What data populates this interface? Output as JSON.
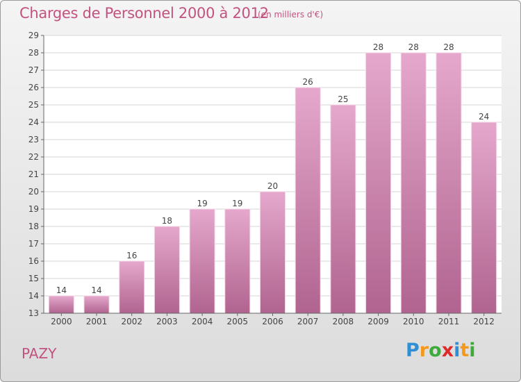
{
  "title": "Charges de Personnel 2000 à 2012",
  "subtitle": "(en milliers d'€)",
  "commune": "PAZY",
  "logo": {
    "letters": [
      {
        "ch": "P",
        "color": "#2e8fd6"
      },
      {
        "ch": "r",
        "color": "#f39a1e"
      },
      {
        "ch": "o",
        "color": "#3dab3a"
      },
      {
        "ch": "x",
        "color": "#e02a2a"
      },
      {
        "ch": "i",
        "color": "#2e8fd6"
      },
      {
        "ch": "t",
        "color": "#f39a1e"
      },
      {
        "ch": "i",
        "color": "#3dab3a"
      }
    ]
  },
  "colors": {
    "bar_top": "#e5a8cc",
    "bar_bottom": "#b0648f",
    "title": "#c2527f"
  },
  "chart_data": {
    "type": "bar",
    "title": "Charges de Personnel 2000 à 2012",
    "subtitle": "(en milliers d'€)",
    "xlabel": "",
    "ylabel": "",
    "categories": [
      "2000",
      "2001",
      "2002",
      "2003",
      "2004",
      "2005",
      "2006",
      "2007",
      "2008",
      "2009",
      "2010",
      "2011",
      "2012"
    ],
    "values": [
      14,
      14,
      16,
      18,
      19,
      19,
      20,
      26,
      25,
      28,
      28,
      28,
      24
    ],
    "ylim": [
      13,
      29
    ],
    "yticks": [
      13,
      14,
      15,
      16,
      17,
      18,
      19,
      20,
      21,
      22,
      23,
      24,
      25,
      26,
      27,
      28,
      29
    ],
    "grid": true
  }
}
